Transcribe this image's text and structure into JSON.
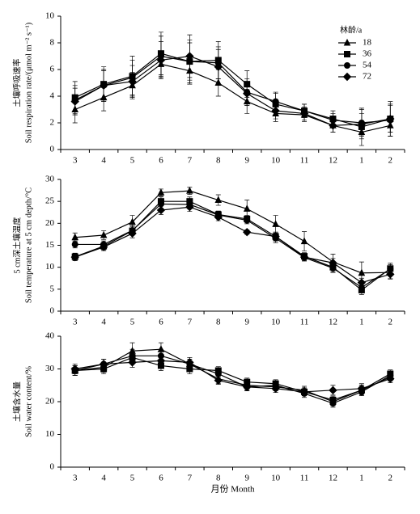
{
  "chart_data": [
    {
      "type": "line",
      "ylabel": [
        "土壤呼吸速率",
        "Soil respiration rate/(μmol m⁻² s⁻¹)"
      ],
      "categories": [
        "3",
        "4",
        "5",
        "6",
        "7",
        "8",
        "9",
        "10",
        "11",
        "12",
        "1",
        "2"
      ],
      "ylim": [
        0,
        10
      ],
      "yticks": [
        0,
        2,
        4,
        6,
        8,
        10
      ],
      "legend_title": "林龄/a",
      "legend": "upper right",
      "series": [
        {
          "name": "18",
          "marker": "triangle",
          "color": "#000000",
          "values": [
            3.0,
            3.9,
            4.8,
            6.4,
            5.9,
            5.0,
            3.6,
            2.7,
            2.6,
            1.8,
            1.3,
            1.8
          ],
          "errors": [
            1.0,
            1.0,
            1.0,
            1.0,
            1.0,
            1.0,
            0.9,
            0.6,
            0.5,
            0.5,
            0.5,
            0.5
          ]
        },
        {
          "name": "36",
          "marker": "square",
          "color": "#000000",
          "values": [
            3.9,
            4.9,
            5.5,
            7.2,
            6.6,
            6.7,
            4.9,
            3.4,
            2.9,
            2.3,
            1.7,
            2.3
          ],
          "errors": [
            1.2,
            1.3,
            1.5,
            1.6,
            1.6,
            1.4,
            1.0,
            0.8,
            0.5,
            0.6,
            1.4,
            1.3
          ]
        },
        {
          "name": "54",
          "marker": "circle",
          "color": "#000000",
          "values": [
            3.7,
            4.8,
            5.4,
            7.0,
            6.6,
            6.5,
            4.3,
            3.6,
            2.9,
            2.2,
            2.0,
            2.2
          ],
          "errors": [
            1.1,
            1.2,
            1.3,
            1.5,
            1.4,
            1.2,
            1.0,
            0.7,
            0.5,
            0.5,
            1.0,
            1.2
          ]
        },
        {
          "name": "72",
          "marker": "diamond",
          "color": "#000000",
          "values": [
            3.6,
            4.8,
            5.1,
            6.7,
            7.0,
            6.2,
            4.2,
            2.9,
            2.7,
            1.8,
            1.9,
            2.3
          ],
          "errors": [
            1.0,
            1.1,
            1.2,
            1.4,
            1.6,
            1.3,
            0.9,
            0.6,
            0.5,
            0.5,
            0.8,
            1.0
          ]
        }
      ]
    },
    {
      "type": "line",
      "ylabel": [
        "5 cm深土壤温度",
        "Soil temperature at 5 cm depth/°C"
      ],
      "categories": [
        "3",
        "4",
        "5",
        "6",
        "7",
        "8",
        "9",
        "10",
        "11",
        "12",
        "1",
        "2"
      ],
      "ylim": [
        0,
        30
      ],
      "yticks": [
        0,
        5,
        10,
        15,
        20,
        25,
        30
      ],
      "series": [
        {
          "marker": "triangle",
          "color": "#000000",
          "values": [
            16.8,
            17.3,
            20.3,
            27.0,
            27.4,
            25.3,
            23.3,
            19.8,
            15.9,
            11.2,
            8.7,
            8.8
          ],
          "errors": [
            1.0,
            1.0,
            1.5,
            0.8,
            0.8,
            1.2,
            2.0,
            2.0,
            2.2,
            1.8,
            2.5,
            1.5
          ]
        },
        {
          "marker": "square",
          "color": "#000000",
          "values": [
            12.4,
            14.8,
            18.3,
            25.0,
            25.0,
            22.0,
            21.0,
            17.0,
            12.5,
            10.0,
            4.8,
            9.7
          ],
          "errors": [
            0.8,
            0.8,
            1.0,
            1.0,
            1.0,
            0.8,
            0.8,
            1.0,
            0.8,
            1.0,
            1.0,
            1.2
          ]
        },
        {
          "marker": "circle",
          "color": "#000000",
          "values": [
            15.2,
            15.2,
            18.4,
            24.4,
            24.3,
            21.9,
            20.7,
            16.6,
            12.2,
            9.8,
            5.4,
            9.6
          ],
          "errors": [
            0.8,
            0.8,
            1.0,
            1.0,
            1.0,
            0.8,
            0.8,
            1.0,
            0.8,
            1.0,
            1.0,
            1.0
          ]
        },
        {
          "marker": "diamond",
          "color": "#000000",
          "values": [
            12.3,
            14.6,
            17.7,
            23.0,
            23.7,
            21.4,
            18.0,
            17.0,
            12.3,
            11.0,
            6.5,
            8.4
          ],
          "errors": [
            0.8,
            0.8,
            1.0,
            1.0,
            1.0,
            0.8,
            0.5,
            1.0,
            0.8,
            1.0,
            1.0,
            1.0
          ]
        }
      ]
    },
    {
      "type": "line",
      "ylabel": [
        "土壤含水量",
        "Soil water content/%"
      ],
      "xlabel": "月份 Month",
      "categories": [
        "3",
        "4",
        "5",
        "6",
        "7",
        "8",
        "9",
        "10",
        "11",
        "12",
        "1",
        "2"
      ],
      "ylim": [
        0,
        40
      ],
      "yticks": [
        0,
        10,
        20,
        30,
        40
      ],
      "series": [
        {
          "marker": "triangle",
          "color": "#000000",
          "values": [
            29.5,
            30.5,
            35.5,
            36.0,
            31.5,
            27.0,
            25.0,
            24.5,
            23.5,
            20.0,
            23.5,
            27.5
          ],
          "errors": [
            1.5,
            1.5,
            2.5,
            2.0,
            2.0,
            1.5,
            1.5,
            1.2,
            1.2,
            1.2,
            1.5,
            1.2
          ]
        },
        {
          "marker": "square",
          "color": "#000000",
          "values": [
            29.5,
            30.0,
            33.5,
            31.0,
            30.0,
            29.5,
            26.0,
            25.5,
            23.0,
            20.5,
            23.5,
            28.5
          ],
          "errors": [
            1.5,
            1.5,
            1.5,
            1.5,
            1.5,
            1.2,
            1.2,
            1.2,
            1.2,
            1.2,
            1.2,
            1.2
          ]
        },
        {
          "marker": "circle",
          "color": "#000000",
          "values": [
            29.5,
            31.5,
            34.0,
            34.0,
            31.5,
            28.5,
            24.5,
            25.0,
            22.5,
            19.5,
            23.0,
            28.0
          ],
          "errors": [
            1.5,
            1.5,
            2.0,
            2.0,
            1.5,
            1.2,
            1.2,
            1.2,
            1.2,
            1.2,
            1.2,
            1.2
          ]
        },
        {
          "marker": "diamond",
          "color": "#000000",
          "values": [
            30.0,
            31.5,
            32.0,
            32.5,
            32.0,
            26.5,
            24.5,
            24.0,
            23.0,
            23.5,
            24.0,
            27.0
          ],
          "errors": [
            1.5,
            1.5,
            1.5,
            1.5,
            1.5,
            1.2,
            1.2,
            1.2,
            1.2,
            1.5,
            1.5,
            1.2
          ]
        }
      ]
    }
  ]
}
